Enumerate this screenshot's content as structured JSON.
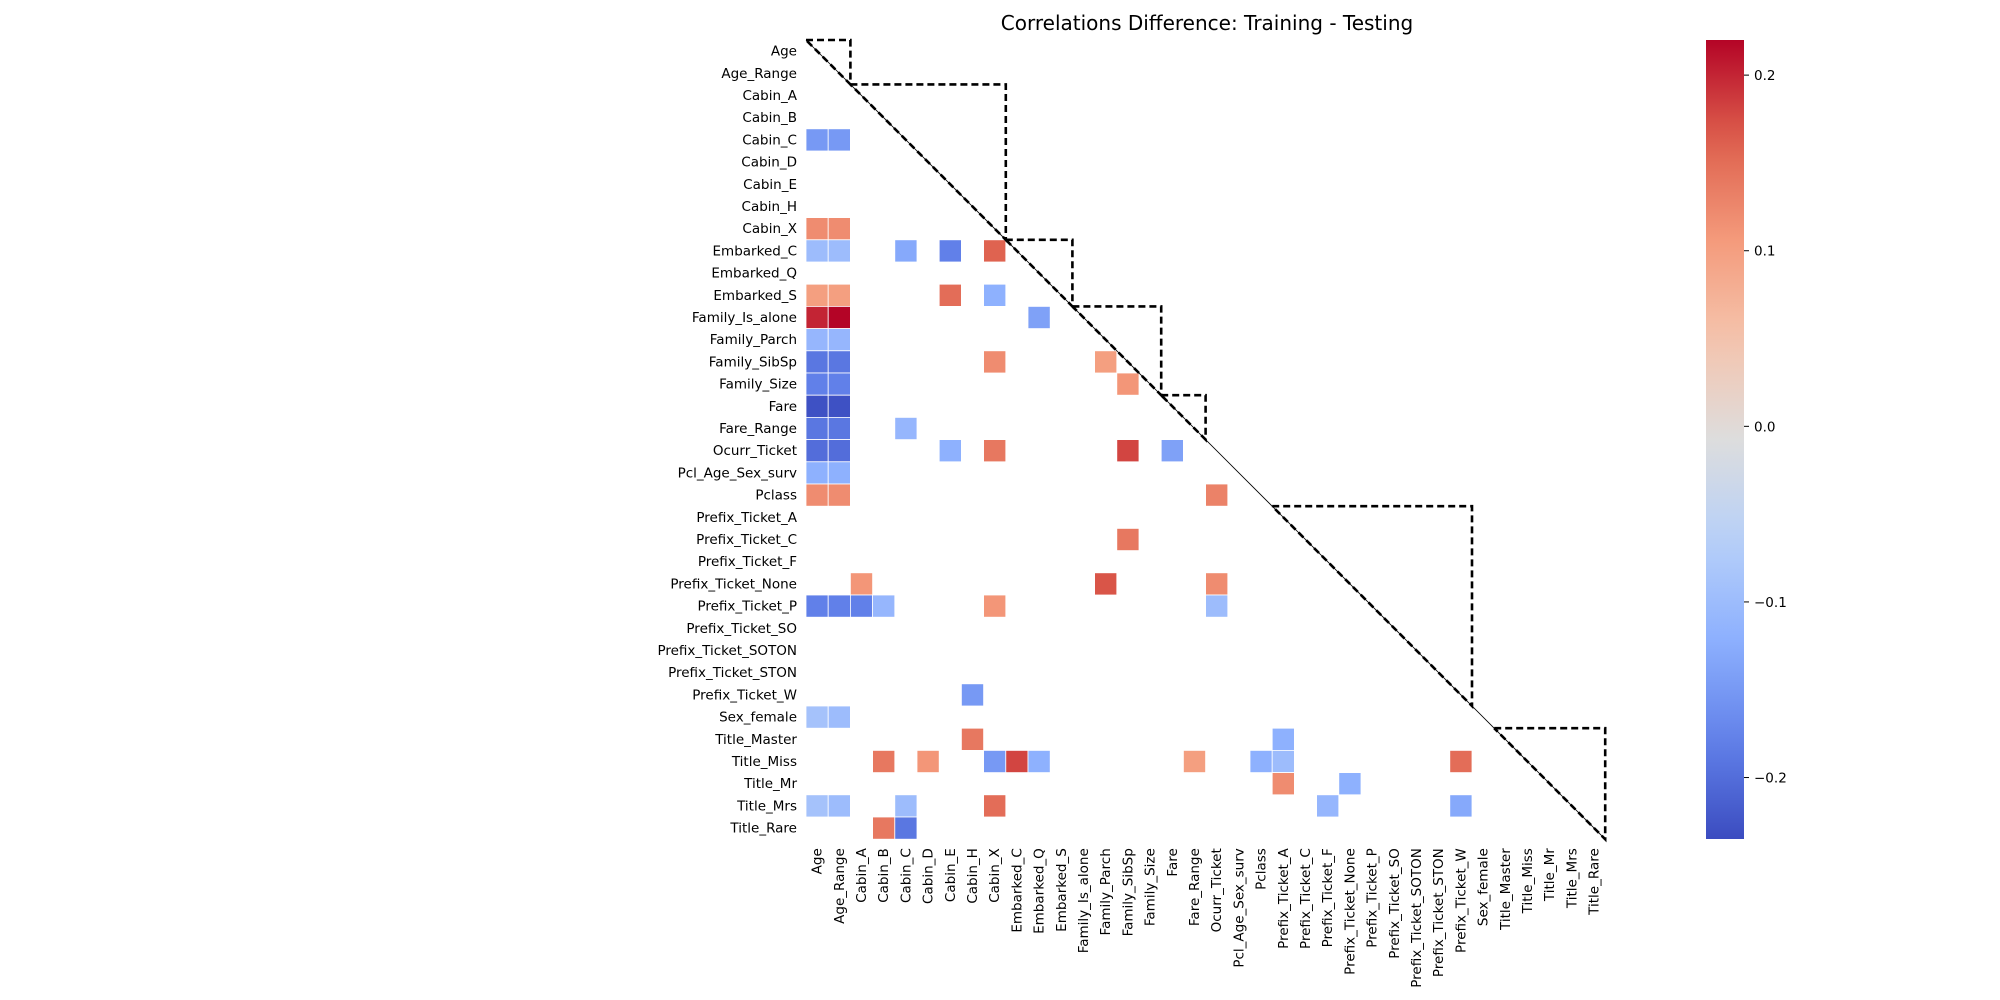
{
  "chart_data": {
    "type": "heatmap",
    "title": "Correlations Difference: Training - Testing",
    "labels": [
      "Age",
      "Age_Range",
      "Cabin_A",
      "Cabin_B",
      "Cabin_C",
      "Cabin_D",
      "Cabin_E",
      "Cabin_H",
      "Cabin_X",
      "Embarked_C",
      "Embarked_Q",
      "Embarked_S",
      "Family_Is_alone",
      "Family_Parch",
      "Family_SibSp",
      "Family_Size",
      "Fare",
      "Fare_Range",
      "Ocurr_Ticket",
      "Pcl_Age_Sex_surv",
      "Pclass",
      "Prefix_Ticket_A",
      "Prefix_Ticket_C",
      "Prefix_Ticket_F",
      "Prefix_Ticket_None",
      "Prefix_Ticket_P",
      "Prefix_Ticket_SO",
      "Prefix_Ticket_SOTON",
      "Prefix_Ticket_STON",
      "Prefix_Ticket_W",
      "Sex_female",
      "Title_Master",
      "Title_Miss",
      "Title_Mr",
      "Title_Mrs",
      "Title_Rare"
    ],
    "cells": [
      [
        "Cabin_C",
        "Age",
        -0.15
      ],
      [
        "Cabin_C",
        "Age_Range",
        -0.15
      ],
      [
        "Cabin_X",
        "Age",
        0.12
      ],
      [
        "Cabin_X",
        "Age_Range",
        0.12
      ],
      [
        "Embarked_C",
        "Age",
        -0.1
      ],
      [
        "Embarked_C",
        "Age_Range",
        -0.1
      ],
      [
        "Embarked_C",
        "Cabin_C",
        -0.13
      ],
      [
        "Embarked_C",
        "Cabin_E",
        -0.18
      ],
      [
        "Embarked_C",
        "Cabin_X",
        0.16
      ],
      [
        "Embarked_S",
        "Age",
        0.1
      ],
      [
        "Embarked_S",
        "Age_Range",
        0.1
      ],
      [
        "Embarked_S",
        "Cabin_E",
        0.15
      ],
      [
        "Embarked_S",
        "Cabin_X",
        -0.12
      ],
      [
        "Family_Is_alone",
        "Age",
        0.2
      ],
      [
        "Family_Is_alone",
        "Age_Range",
        0.22
      ],
      [
        "Family_Is_alone",
        "Embarked_Q",
        -0.14
      ],
      [
        "Family_Parch",
        "Age",
        -0.11
      ],
      [
        "Family_Parch",
        "Age_Range",
        -0.11
      ],
      [
        "Family_SibSp",
        "Age",
        -0.19
      ],
      [
        "Family_SibSp",
        "Age_Range",
        -0.19
      ],
      [
        "Family_SibSp",
        "Cabin_X",
        0.12
      ],
      [
        "Family_SibSp",
        "Family_Parch",
        0.1
      ],
      [
        "Family_Size",
        "Age",
        -0.18
      ],
      [
        "Family_Size",
        "Age_Range",
        -0.18
      ],
      [
        "Family_Size",
        "Family_SibSp",
        0.11
      ],
      [
        "Fare",
        "Age",
        -0.23
      ],
      [
        "Fare",
        "Age_Range",
        -0.23
      ],
      [
        "Fare_Range",
        "Age",
        -0.19
      ],
      [
        "Fare_Range",
        "Age_Range",
        -0.19
      ],
      [
        "Fare_Range",
        "Cabin_C",
        -0.11
      ],
      [
        "Ocurr_Ticket",
        "Age",
        -0.2
      ],
      [
        "Ocurr_Ticket",
        "Age_Range",
        -0.2
      ],
      [
        "Ocurr_Ticket",
        "Cabin_E",
        -0.12
      ],
      [
        "Ocurr_Ticket",
        "Cabin_X",
        0.14
      ],
      [
        "Ocurr_Ticket",
        "Family_SibSp",
        0.18
      ],
      [
        "Ocurr_Ticket",
        "Fare",
        -0.14
      ],
      [
        "Pcl_Age_Sex_surv",
        "Age",
        -0.12
      ],
      [
        "Pcl_Age_Sex_surv",
        "Age_Range",
        -0.12
      ],
      [
        "Pclass",
        "Age",
        0.12
      ],
      [
        "Pclass",
        "Age_Range",
        0.12
      ],
      [
        "Pclass",
        "Ocurr_Ticket",
        0.13
      ],
      [
        "Prefix_Ticket_C",
        "Family_SibSp",
        0.14
      ],
      [
        "Prefix_Ticket_None",
        "Cabin_A",
        0.11
      ],
      [
        "Prefix_Ticket_None",
        "Family_Parch",
        0.17
      ],
      [
        "Prefix_Ticket_None",
        "Ocurr_Ticket",
        0.12
      ],
      [
        "Prefix_Ticket_P",
        "Age",
        -0.18
      ],
      [
        "Prefix_Ticket_P",
        "Age_Range",
        -0.18
      ],
      [
        "Prefix_Ticket_P",
        "Cabin_A",
        -0.18
      ],
      [
        "Prefix_Ticket_P",
        "Cabin_B",
        -0.11
      ],
      [
        "Prefix_Ticket_P",
        "Cabin_X",
        0.11
      ],
      [
        "Prefix_Ticket_P",
        "Ocurr_Ticket",
        -0.1
      ],
      [
        "Prefix_Ticket_W",
        "Cabin_H",
        -0.15
      ],
      [
        "Sex_female",
        "Age",
        -0.09
      ],
      [
        "Sex_female",
        "Age_Range",
        -0.1
      ],
      [
        "Title_Master",
        "Cabin_H",
        0.14
      ],
      [
        "Title_Master",
        "Prefix_Ticket_A",
        -0.12
      ],
      [
        "Title_Miss",
        "Cabin_B",
        0.14
      ],
      [
        "Title_Miss",
        "Cabin_D",
        0.11
      ],
      [
        "Title_Miss",
        "Cabin_X",
        -0.15
      ],
      [
        "Title_Miss",
        "Embarked_C",
        0.18
      ],
      [
        "Title_Miss",
        "Embarked_Q",
        -0.12
      ],
      [
        "Title_Miss",
        "Fare_Range",
        0.1
      ],
      [
        "Title_Miss",
        "Pclass",
        -0.12
      ],
      [
        "Title_Miss",
        "Prefix_Ticket_A",
        -0.1
      ],
      [
        "Title_Miss",
        "Prefix_Ticket_W",
        0.15
      ],
      [
        "Title_Mr",
        "Prefix_Ticket_A",
        0.12
      ],
      [
        "Title_Mr",
        "Prefix_Ticket_None",
        -0.12
      ],
      [
        "Title_Mrs",
        "Age",
        -0.09
      ],
      [
        "Title_Mrs",
        "Age_Range",
        -0.1
      ],
      [
        "Title_Mrs",
        "Cabin_C",
        -0.1
      ],
      [
        "Title_Mrs",
        "Cabin_X",
        0.15
      ],
      [
        "Title_Mrs",
        "Prefix_Ticket_F",
        -0.11
      ],
      [
        "Title_Mrs",
        "Prefix_Ticket_W",
        -0.13
      ],
      [
        "Title_Rare",
        "Cabin_B",
        0.14
      ],
      [
        "Title_Rare",
        "Cabin_C",
        -0.19
      ]
    ],
    "groups": [
      [
        "Age",
        "Age_Range"
      ],
      [
        "Cabin_A",
        "Cabin_X"
      ],
      [
        "Embarked_C",
        "Embarked_S"
      ],
      [
        "Family_Is_alone",
        "Family_Size"
      ],
      [
        "Fare",
        "Fare_Range"
      ],
      [
        "Prefix_Ticket_A",
        "Prefix_Ticket_W"
      ],
      [
        "Title_Master",
        "Title_Rare"
      ]
    ],
    "colorbar": {
      "colormap": "coolwarm",
      "vmin": -0.235,
      "vmax": 0.22,
      "ticks": [
        -0.2,
        -0.1,
        0.0,
        0.1,
        0.2
      ],
      "tick_labels": [
        "−0.2",
        "−0.1",
        "0.0",
        "0.1",
        "0.2"
      ]
    },
    "grid": false,
    "legend": "right"
  }
}
